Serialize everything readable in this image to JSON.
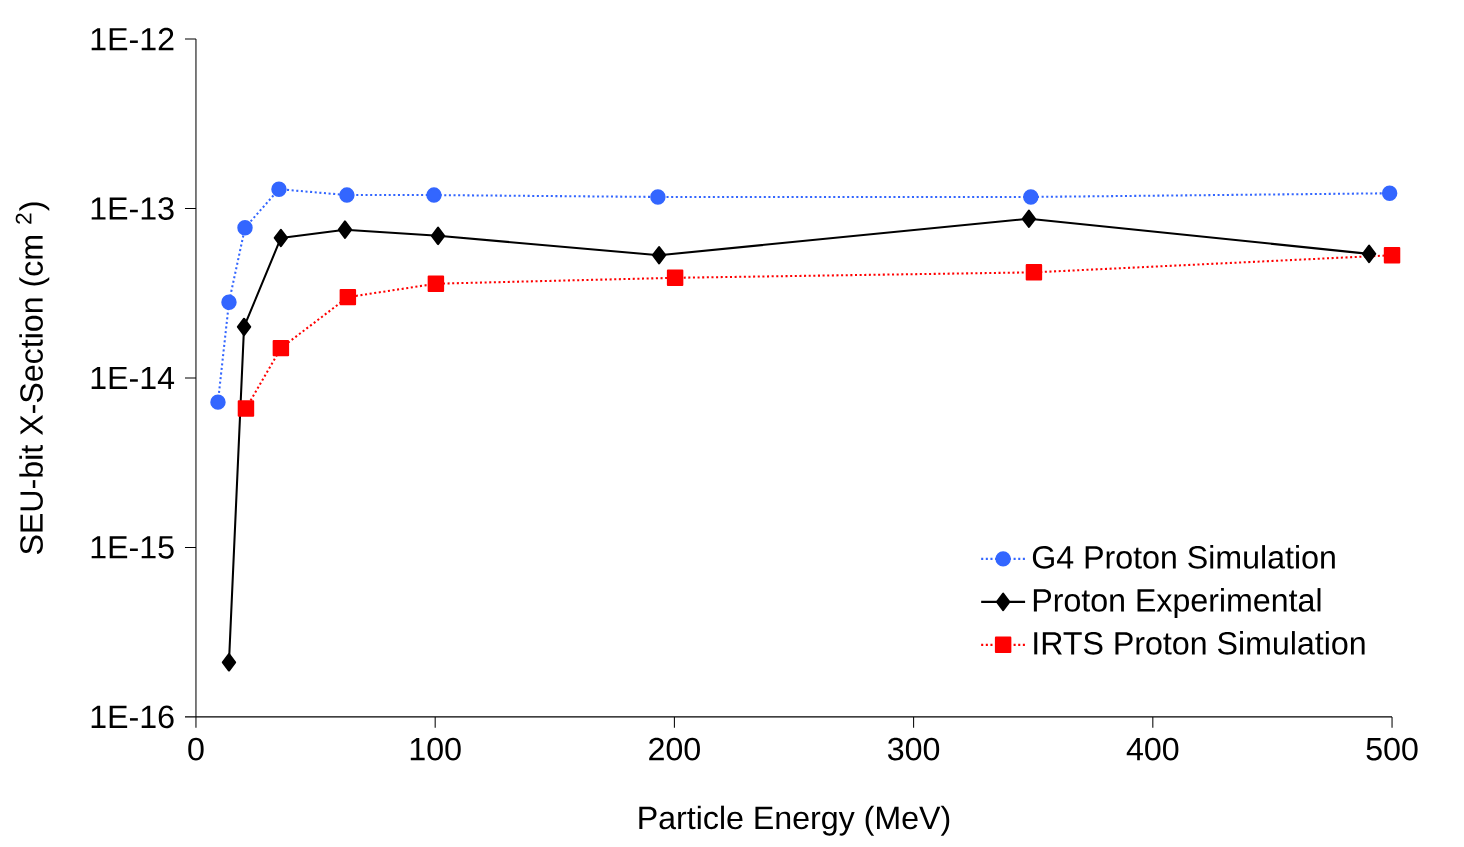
{
  "chart_data": {
    "type": "line",
    "xlabel": "Particle Energy (MeV)",
    "ylabel": "SEU-bit X-Section (cm $^{2}$)",
    "log": "y",
    "xlim": [
      0,
      500
    ],
    "xticks": [
      0,
      100,
      200,
      300,
      400,
      500
    ],
    "ylim": [
      1e-16,
      1e-12
    ],
    "yticks": [
      {
        "value": 1e-16,
        "label": "1E-16"
      },
      {
        "value": 1e-15,
        "label": "1E-15"
      },
      {
        "value": 1e-14,
        "label": "1E-14"
      },
      {
        "value": 1e-13,
        "label": "1E-13"
      },
      {
        "value": 1e-12,
        "label": "1E-12"
      }
    ],
    "grid": false,
    "legend": "bottom right",
    "series": [
      {
        "name": "G4 Proton Simulation",
        "color": "#3366ff",
        "marker": "circle",
        "line_style": "dotted",
        "x": [
          9.2,
          13.8,
          20.5,
          34.7,
          63.1,
          99.5,
          193.1,
          349,
          499
        ],
        "values": [
          7.2e-15,
          2.8e-14,
          7.7e-14,
          1.3e-13,
          1.2e-13,
          1.2e-13,
          1.17e-13,
          1.17e-13,
          1.23e-13
        ]
      },
      {
        "name": "Proton Experimental",
        "color": "#000000",
        "marker": "diamond",
        "line_style": "solid",
        "x": [
          13.8,
          20.1,
          35.5,
          62.3,
          101.2,
          193.6,
          348.2,
          490.4
        ],
        "values": [
          2.1e-16,
          2e-14,
          6.7e-14,
          7.5e-14,
          6.9e-14,
          5.3e-14,
          8.7e-14,
          5.4e-14
        ]
      },
      {
        "name": "IRTS Proton Simulation",
        "color": "#ff0000",
        "marker": "square",
        "line_style": "dotted",
        "x": [
          20.9,
          35.5,
          63.5,
          100.3,
          200.3,
          350.3,
          500
        ],
        "values": [
          6.6e-15,
          1.5e-14,
          3e-14,
          3.6e-14,
          3.9e-14,
          4.2e-14,
          5.3e-14
        ]
      }
    ]
  }
}
